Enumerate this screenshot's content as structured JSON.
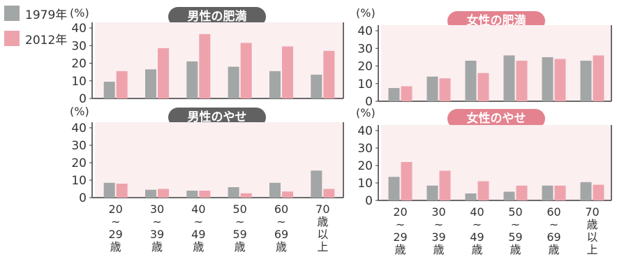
{
  "legend": {
    "items": [
      {
        "label": "1979年",
        "color": "#a3a6a6"
      },
      {
        "label": "2012年",
        "color": "#eea3ac"
      }
    ]
  },
  "colors": {
    "panel_bg": "#fbeff0",
    "axis": "#3a3a3a",
    "grid": "#d9bfc3",
    "title_male": "#616161",
    "title_female": "#e4838f"
  },
  "chart_data": [
    {
      "type": "bar",
      "title": "男性の肥満",
      "ylabel": "(%)",
      "ylim": [
        0,
        40
      ],
      "yticks": [
        "0",
        "10",
        "20",
        "30",
        "40"
      ],
      "categories": [
        "20~29歳",
        "30~39歳",
        "40~49歳",
        "50~59歳",
        "60~69歳",
        "70歳以上"
      ],
      "series": [
        {
          "name": "1979年",
          "values": [
            9.5,
            16.5,
            21,
            18,
            15.5,
            13.5
          ]
        },
        {
          "name": "2012年",
          "values": [
            15.5,
            28.5,
            36.5,
            31.5,
            29.5,
            27
          ]
        }
      ]
    },
    {
      "type": "bar",
      "title": "女性の肥満",
      "ylabel": "(%)",
      "ylim": [
        0,
        40
      ],
      "yticks": [
        "0",
        "10",
        "20",
        "30",
        "40"
      ],
      "categories": [
        "20~29歳",
        "30~39歳",
        "40~49歳",
        "50~59歳",
        "60~69歳",
        "70歳以上"
      ],
      "series": [
        {
          "name": "1979年",
          "values": [
            7.5,
            14,
            23,
            26,
            25,
            23
          ]
        },
        {
          "name": "2012年",
          "values": [
            8.5,
            13,
            16,
            23,
            24,
            26
          ]
        }
      ]
    },
    {
      "type": "bar",
      "title": "男性のやせ",
      "ylabel": "(%)",
      "ylim": [
        0,
        40
      ],
      "yticks": [
        "0",
        "10",
        "20",
        "30",
        "40"
      ],
      "categories": [
        "20~29歳",
        "30~39歳",
        "40~49歳",
        "50~59歳",
        "60~69歳",
        "70歳以上"
      ],
      "x_tick_rows": [
        [
          "20",
          "~",
          "29",
          "歳"
        ],
        [
          "30",
          "~",
          "39",
          "歳"
        ],
        [
          "40",
          "~",
          "49",
          "歳"
        ],
        [
          "50",
          "~",
          "59",
          "歳"
        ],
        [
          "60",
          "~",
          "69",
          "歳"
        ],
        [
          "70",
          "歳",
          "以",
          "上"
        ]
      ],
      "series": [
        {
          "name": "1979年",
          "values": [
            8.5,
            4.5,
            4,
            6,
            8.5,
            15.5
          ]
        },
        {
          "name": "2012年",
          "values": [
            8,
            5,
            4,
            2.5,
            3.5,
            5
          ]
        }
      ]
    },
    {
      "type": "bar",
      "title": "女性のやせ",
      "ylabel": "(%)",
      "ylim": [
        0,
        40
      ],
      "yticks": [
        "0",
        "10",
        "20",
        "30",
        "40"
      ],
      "categories": [
        "20~29歳",
        "30~39歳",
        "40~49歳",
        "50~59歳",
        "60~69歳",
        "70歳以上"
      ],
      "x_tick_rows": [
        [
          "20",
          "~",
          "29",
          "歳"
        ],
        [
          "30",
          "~",
          "39",
          "歳"
        ],
        [
          "40",
          "~",
          "49",
          "歳"
        ],
        [
          "50",
          "~",
          "59",
          "歳"
        ],
        [
          "60",
          "~",
          "69",
          "歳"
        ],
        [
          "70",
          "歳",
          "以",
          "上"
        ]
      ],
      "series": [
        {
          "name": "1979年",
          "values": [
            13.5,
            8.5,
            4,
            5,
            8.5,
            10.5
          ]
        },
        {
          "name": "2012年",
          "values": [
            22,
            17,
            11,
            8.5,
            8.5,
            9
          ]
        }
      ]
    }
  ]
}
